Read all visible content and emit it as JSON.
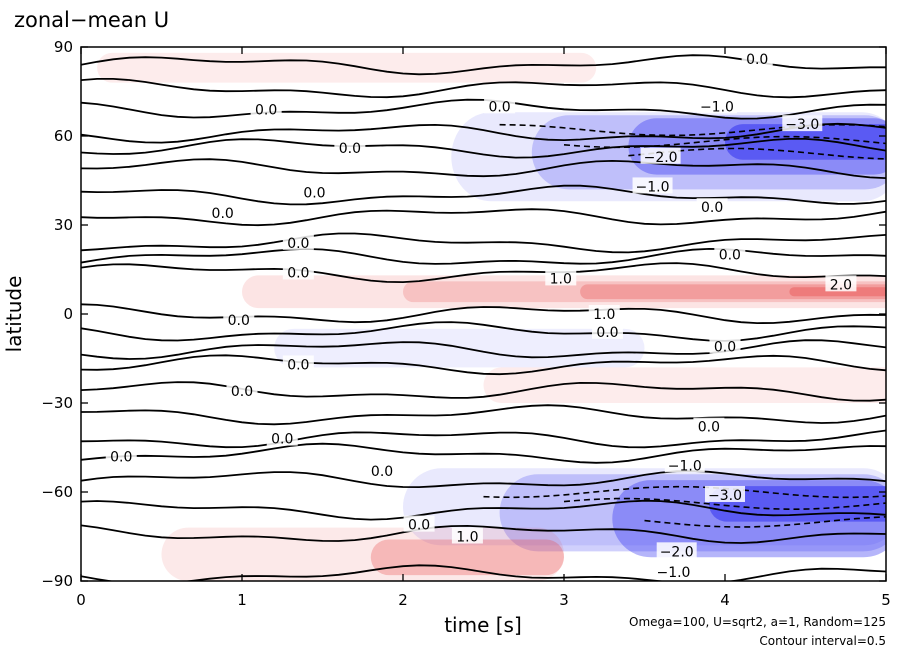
{
  "chart_data": {
    "type": "heatmap",
    "title": "zonal−mean U",
    "xlabel": "time [s]",
    "ylabel": "latitude",
    "xlim": [
      0,
      5
    ],
    "ylim": [
      -90,
      90
    ],
    "x_ticks": [
      0,
      1,
      2,
      3,
      4,
      5
    ],
    "y_ticks": [
      90,
      60,
      30,
      0,
      -30,
      -60,
      -90
    ],
    "x_tick_labels": [
      "0",
      "1",
      "2",
      "3",
      "4",
      "5"
    ],
    "y_tick_labels": [
      "90",
      "60",
      "30",
      "0",
      "−30",
      "−60",
      "−90"
    ],
    "contour_interval": 0.5,
    "positive_color": "#e84848",
    "negative_color": "#2a2af0",
    "contour_labels": [
      {
        "text": "0.0",
        "t": 4.2,
        "lat": 86
      },
      {
        "text": "0.0",
        "t": 1.15,
        "lat": 69
      },
      {
        "text": "0.0",
        "t": 2.6,
        "lat": 70
      },
      {
        "text": "−1.0",
        "t": 3.95,
        "lat": 70
      },
      {
        "text": "−3.0",
        "t": 4.48,
        "lat": 64
      },
      {
        "text": "0.0",
        "t": 1.67,
        "lat": 56
      },
      {
        "text": "−2.0",
        "t": 3.6,
        "lat": 53
      },
      {
        "text": "−1.0",
        "t": 3.55,
        "lat": 43
      },
      {
        "text": "0.0",
        "t": 1.45,
        "lat": 41
      },
      {
        "text": "0.0",
        "t": 0.88,
        "lat": 34
      },
      {
        "text": "0.0",
        "t": 3.92,
        "lat": 36
      },
      {
        "text": "0.0",
        "t": 1.35,
        "lat": 24
      },
      {
        "text": "0.0",
        "t": 4.03,
        "lat": 20
      },
      {
        "text": "0.0",
        "t": 1.35,
        "lat": 14
      },
      {
        "text": "1.0",
        "t": 2.98,
        "lat": 12
      },
      {
        "text": "2.0",
        "t": 4.72,
        "lat": 10
      },
      {
        "text": "1.0",
        "t": 3.25,
        "lat": 0
      },
      {
        "text": "0.0",
        "t": 0.98,
        "lat": -2
      },
      {
        "text": "0.0",
        "t": 3.27,
        "lat": -6
      },
      {
        "text": "0.0",
        "t": 4.0,
        "lat": -11
      },
      {
        "text": "0.0",
        "t": 1.35,
        "lat": -17
      },
      {
        "text": "0.0",
        "t": 1.0,
        "lat": -26
      },
      {
        "text": "0.0",
        "t": 1.25,
        "lat": -42
      },
      {
        "text": "0.0",
        "t": 3.9,
        "lat": -38
      },
      {
        "text": "0.0",
        "t": 0.25,
        "lat": -48
      },
      {
        "text": "0.0",
        "t": 1.87,
        "lat": -53
      },
      {
        "text": "−1.0",
        "t": 3.75,
        "lat": -51
      },
      {
        "text": "−3.0",
        "t": 4.0,
        "lat": -61
      },
      {
        "text": "0.0",
        "t": 2.1,
        "lat": -71
      },
      {
        "text": "1.0",
        "t": 2.4,
        "lat": -75
      },
      {
        "text": "−2.0",
        "t": 3.7,
        "lat": -80
      },
      {
        "text": "−1.0",
        "t": 3.68,
        "lat": -87
      }
    ]
  },
  "footnote": {
    "params": "Omega=100, U=sqrt2, a=1, Random=125",
    "interval": "Contour interval=0.5"
  }
}
